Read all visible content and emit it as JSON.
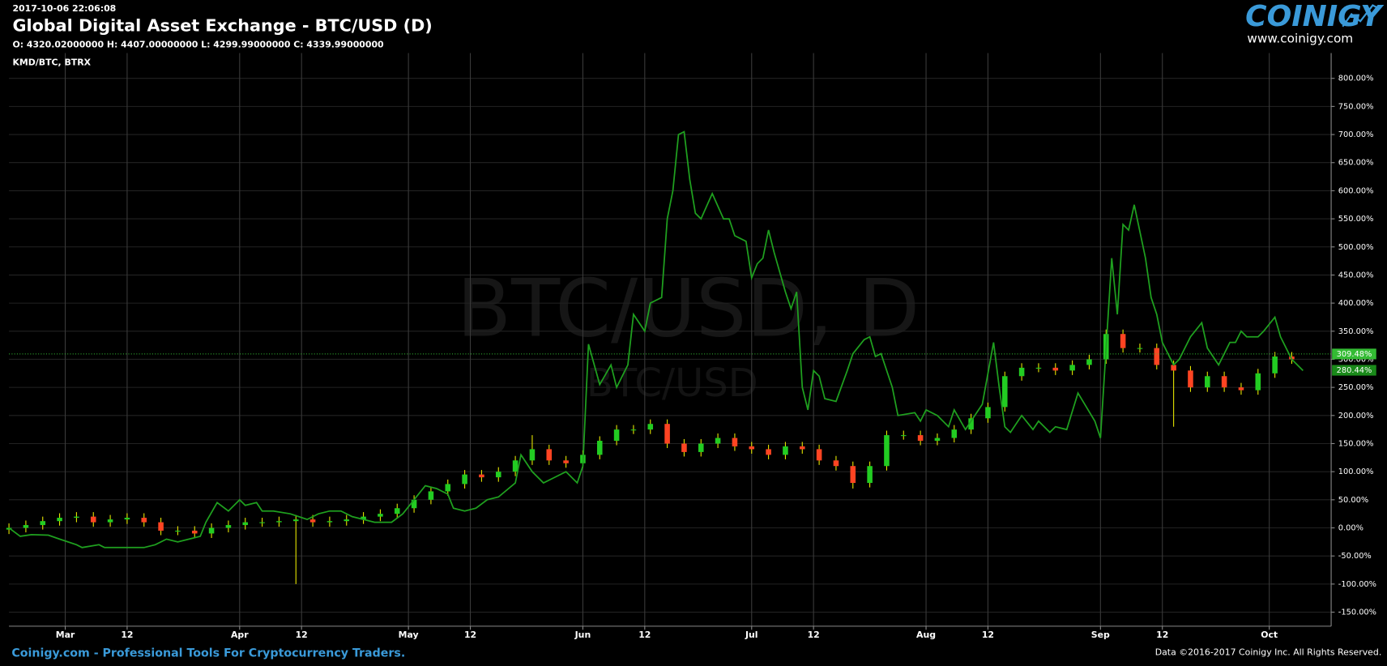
{
  "header": {
    "timestamp": "2017-10-06 22:06:08",
    "title": "Global Digital Asset Exchange - BTC/USD (D)",
    "ohlc": "O: 4320.02000000 H: 4407.00000000 L: 4299.99000000 C: 4339.99000000",
    "logo": "COINIGY",
    "logo_url": "www.coinigy.com"
  },
  "footer": {
    "tagline": "Coinigy.com - Professional Tools For Cryptocurrency Traders.",
    "copyright": "Data ©2016-2017 Coinigy Inc. All Rights Reserved."
  },
  "chart_data": {
    "type": "candlestick",
    "watermark": "BTC/USD, D",
    "watermark_sub": "BTC/USD",
    "xlim": [
      0,
      235
    ],
    "ylim": [
      -175,
      845
    ],
    "grid": true,
    "xticks": [
      {
        "value": 10,
        "label": "Mar"
      },
      {
        "value": 21,
        "label": "12"
      },
      {
        "value": 41,
        "label": "Apr"
      },
      {
        "value": 52,
        "label": "12"
      },
      {
        "value": 71,
        "label": "May"
      },
      {
        "value": 82,
        "label": "12"
      },
      {
        "value": 102,
        "label": "Jun"
      },
      {
        "value": 113,
        "label": "12"
      },
      {
        "value": 132,
        "label": "Jul"
      },
      {
        "value": 143,
        "label": "12"
      },
      {
        "value": 163,
        "label": "Aug"
      },
      {
        "value": 174,
        "label": "12"
      },
      {
        "value": 194,
        "label": "Sep"
      },
      {
        "value": 205,
        "label": "12"
      },
      {
        "value": 224,
        "label": "Oct"
      }
    ],
    "yticks": [
      {
        "value": -150,
        "label": "-150.00%"
      },
      {
        "value": -100,
        "label": "-100.00%"
      },
      {
        "value": -50,
        "label": "-50.00%"
      },
      {
        "value": 0,
        "label": "0.00%"
      },
      {
        "value": 50,
        "label": "50.00%"
      },
      {
        "value": 100,
        "label": "100.00%"
      },
      {
        "value": 150,
        "label": "150.00%"
      },
      {
        "value": 200,
        "label": "200.00%"
      },
      {
        "value": 250,
        "label": "250.00%"
      },
      {
        "value": 300,
        "label": "300.00%"
      },
      {
        "value": 350,
        "label": "350.00%"
      },
      {
        "value": 400,
        "label": "400.00%"
      },
      {
        "value": 450,
        "label": "450.00%"
      },
      {
        "value": 500,
        "label": "500.00%"
      },
      {
        "value": 550,
        "label": "550.00%"
      },
      {
        "value": 600,
        "label": "600.00%"
      },
      {
        "value": 650,
        "label": "650.00%"
      },
      {
        "value": 700,
        "label": "700.00%"
      },
      {
        "value": 750,
        "label": "750.00%"
      },
      {
        "value": 800,
        "label": "800.00%"
      }
    ],
    "candles": {
      "up_color": "#22cc22",
      "down_color": "#ff4422",
      "wick_color": "#e6e600",
      "x": [
        0,
        3,
        6,
        9,
        12,
        15,
        18,
        21,
        24,
        27,
        30,
        33,
        36,
        39,
        42,
        45,
        48,
        51,
        54,
        57,
        60,
        63,
        66,
        69,
        72,
        75,
        78,
        81,
        84,
        87,
        90,
        93,
        96,
        99,
        102,
        105,
        108,
        111,
        114,
        117,
        120,
        123,
        126,
        129,
        132,
        135,
        138,
        141,
        144,
        147,
        150,
        153,
        156,
        159,
        162,
        165,
        168,
        171,
        174,
        177,
        180,
        183,
        186,
        189,
        192,
        195,
        198,
        201,
        204,
        207,
        210,
        213,
        216,
        219,
        222,
        225,
        228
      ],
      "open": [
        -3,
        0,
        5,
        12,
        18,
        20,
        10,
        15,
        18,
        10,
        -5,
        -5,
        -10,
        0,
        5,
        10,
        10,
        12,
        15,
        10,
        12,
        15,
        20,
        25,
        35,
        50,
        65,
        78,
        95,
        90,
        100,
        120,
        140,
        120,
        115,
        130,
        155,
        175,
        175,
        185,
        150,
        135,
        150,
        160,
        145,
        140,
        130,
        145,
        140,
        120,
        110,
        80,
        110,
        165,
        165,
        155,
        160,
        175,
        195,
        215,
        270,
        285,
        285,
        280,
        290,
        300,
        345,
        320,
        320,
        290,
        280,
        250,
        270,
        250,
        245,
        275,
        305
      ],
      "high": [
        8,
        13,
        20,
        26,
        28,
        28,
        23,
        26,
        26,
        18,
        3,
        3,
        8,
        13,
        18,
        18,
        20,
        23,
        23,
        20,
        23,
        28,
        33,
        43,
        58,
        73,
        86,
        103,
        103,
        108,
        128,
        165,
        148,
        128,
        138,
        163,
        183,
        183,
        193,
        193,
        158,
        158,
        168,
        168,
        153,
        148,
        153,
        153,
        148,
        128,
        118,
        118,
        173,
        173,
        173,
        168,
        183,
        203,
        223,
        278,
        293,
        293,
        293,
        298,
        308,
        353,
        353,
        328,
        328,
        298,
        288,
        278,
        278,
        258,
        283,
        313,
        313
      ],
      "low": [
        -11,
        -8,
        -3,
        4,
        10,
        2,
        2,
        7,
        2,
        -13,
        -13,
        -18,
        -18,
        -8,
        -3,
        2,
        2,
        -100,
        2,
        2,
        4,
        7,
        12,
        17,
        27,
        42,
        57,
        70,
        82,
        82,
        92,
        112,
        112,
        107,
        107,
        122,
        147,
        167,
        167,
        142,
        127,
        127,
        142,
        137,
        132,
        122,
        122,
        132,
        112,
        102,
        70,
        72,
        102,
        157,
        147,
        147,
        152,
        167,
        187,
        207,
        262,
        277,
        272,
        272,
        282,
        292,
        312,
        312,
        282,
        180,
        242,
        242,
        242,
        237,
        237,
        267,
        292
      ],
      "close": [
        0,
        5,
        12,
        18,
        20,
        10,
        15,
        18,
        10,
        -5,
        -5,
        -10,
        0,
        5,
        10,
        10,
        12,
        15,
        10,
        12,
        15,
        20,
        25,
        35,
        50,
        65,
        78,
        95,
        90,
        100,
        120,
        140,
        120,
        115,
        130,
        155,
        175,
        175,
        185,
        150,
        135,
        150,
        160,
        145,
        140,
        130,
        145,
        140,
        120,
        110,
        80,
        110,
        165,
        165,
        155,
        160,
        175,
        195,
        215,
        270,
        285,
        285,
        280,
        290,
        300,
        345,
        320,
        320,
        290,
        280,
        250,
        270,
        250,
        245,
        275,
        305,
        300
      ]
    },
    "series": [
      {
        "name": "KMD/BTC, BTRX",
        "type": "line",
        "color": "#1fa01f",
        "x": [
          0,
          2,
          4,
          7,
          9,
          12,
          13,
          16,
          17,
          20,
          24,
          26,
          28,
          30,
          32,
          34,
          35,
          37,
          39,
          41,
          42,
          44,
          45,
          47,
          50,
          53,
          55,
          57,
          59,
          61,
          63,
          65,
          68,
          70,
          72,
          74,
          76,
          78,
          79,
          81,
          83,
          85,
          87,
          90,
          91,
          93,
          95,
          97,
          99,
          101,
          102,
          103,
          105,
          107,
          108,
          110,
          111,
          113,
          114,
          116,
          117,
          118,
          119,
          120,
          121,
          122,
          123,
          125,
          127,
          128,
          129,
          131,
          132,
          133,
          134,
          135,
          136,
          138,
          139,
          140,
          141,
          142,
          143,
          144,
          145,
          147,
          149,
          150,
          152,
          153,
          154,
          155,
          157,
          158,
          161,
          162,
          163,
          165,
          167,
          168,
          170,
          171,
          173,
          175,
          176,
          177,
          178,
          180,
          182,
          183,
          185,
          186,
          188,
          190,
          193,
          194,
          196,
          197,
          198,
          199,
          200,
          202,
          203,
          204,
          205,
          207,
          208,
          210,
          212,
          213,
          215,
          217,
          218,
          219,
          220,
          222,
          223,
          225,
          226,
          227,
          228,
          230
        ],
        "values": [
          0,
          -15,
          -12,
          -13,
          -20,
          -30,
          -35,
          -30,
          -35,
          -35,
          -35,
          -30,
          -20,
          -25,
          -20,
          -15,
          10,
          45,
          30,
          50,
          40,
          45,
          30,
          30,
          25,
          15,
          25,
          30,
          30,
          20,
          15,
          10,
          10,
          25,
          50,
          75,
          70,
          60,
          35,
          30,
          35,
          50,
          55,
          80,
          130,
          100,
          80,
          90,
          100,
          80,
          110,
          327,
          255,
          290,
          250,
          290,
          380,
          350,
          400,
          410,
          550,
          600,
          700,
          705,
          620,
          560,
          550,
          595,
          550,
          550,
          520,
          510,
          445,
          470,
          480,
          530,
          490,
          420,
          390,
          420,
          250,
          210,
          280,
          270,
          230,
          225,
          280,
          310,
          335,
          340,
          305,
          310,
          250,
          200,
          205,
          190,
          210,
          200,
          180,
          210,
          175,
          190,
          220,
          330,
          250,
          180,
          170,
          200,
          175,
          190,
          170,
          180,
          175,
          240,
          190,
          160,
          480,
          380,
          540,
          530,
          575,
          480,
          410,
          380,
          330,
          290,
          300,
          340,
          365,
          320,
          290,
          330,
          330,
          350,
          340,
          340,
          350,
          375,
          340,
          320,
          300,
          280
        ]
      }
    ],
    "markers": [
      {
        "value": 309.48,
        "label": "309.48%",
        "color": "#33bb33",
        "dotted": true
      },
      {
        "value": 280.44,
        "label": "280.44%",
        "color": "#1a8a1a",
        "dotted": false
      }
    ]
  }
}
